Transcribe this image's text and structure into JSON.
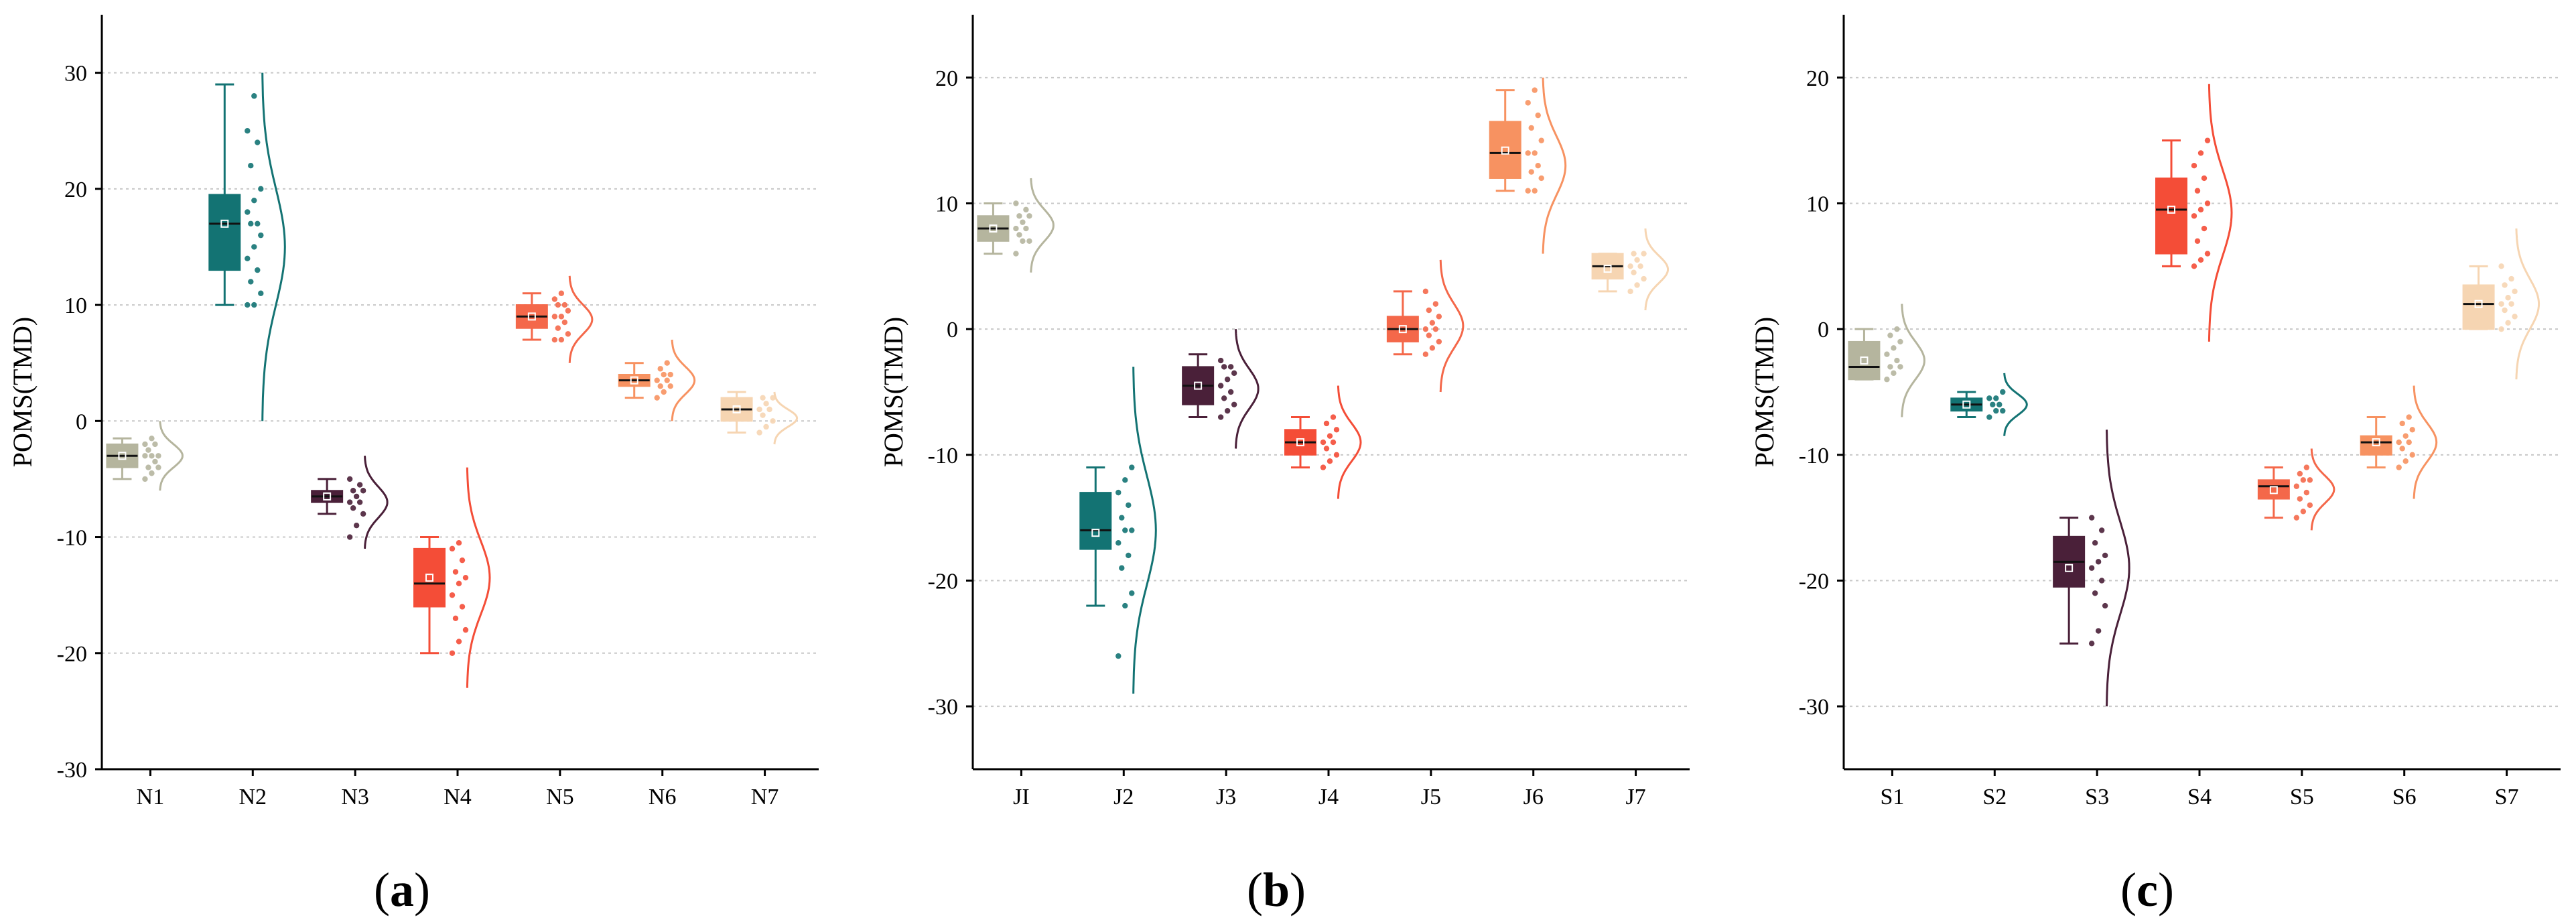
{
  "chart_data": [
    {
      "type": "box",
      "caption_letter": "a",
      "ylabel": "POMS(TMD)",
      "ylim": [
        -30,
        35
      ],
      "yticks": [
        -30,
        -20,
        -10,
        0,
        10,
        20,
        30
      ],
      "grid": true,
      "groups": [
        {
          "label": "N1",
          "color": "#b5b59e",
          "min": -5,
          "q1": -4,
          "median": -3,
          "q3": -2,
          "max": -1.5,
          "mean": -3,
          "points": [
            -5,
            -4.5,
            -4,
            -4,
            -3.5,
            -3,
            -3,
            -3,
            -2.5,
            -2,
            -2,
            -1.5
          ],
          "curve_range": [
            -6,
            0
          ]
        },
        {
          "label": "N2",
          "color": "#137373",
          "min": 10,
          "q1": 13,
          "median": 17,
          "q3": 19.5,
          "max": 29,
          "mean": 17,
          "points": [
            10,
            10,
            11,
            12,
            13,
            14,
            15,
            16,
            17,
            17,
            18,
            19,
            20,
            22,
            24,
            25,
            28
          ],
          "curve_range": [
            0,
            30
          ]
        },
        {
          "label": "N3",
          "color": "#4a2039",
          "min": -8,
          "q1": -7,
          "median": -6.5,
          "q3": -6,
          "max": -5,
          "mean": -6.5,
          "points": [
            -10,
            -9,
            -8,
            -7.5,
            -7,
            -7,
            -6.5,
            -6,
            -6,
            -5.5,
            -5
          ],
          "curve_range": [
            -11,
            -3
          ]
        },
        {
          "label": "N4",
          "color": "#f44d37",
          "min": -20,
          "q1": -16,
          "median": -14,
          "q3": -11,
          "max": -10,
          "mean": -13.5,
          "points": [
            -20,
            -19,
            -18,
            -17,
            -16,
            -15,
            -14,
            -13.5,
            -13,
            -12,
            -11,
            -10.5
          ],
          "curve_range": [
            -23,
            -4
          ]
        },
        {
          "label": "N5",
          "color": "#f4684a",
          "min": 7,
          "q1": 8,
          "median": 9,
          "q3": 10,
          "max": 11,
          "mean": 9,
          "points": [
            7,
            7,
            7.5,
            8,
            8.5,
            9,
            9,
            9.5,
            10,
            10,
            10.5,
            11
          ],
          "curve_range": [
            5,
            12.5
          ]
        },
        {
          "label": "N6",
          "color": "#f79261",
          "min": 2,
          "q1": 3,
          "median": 3.5,
          "q3": 4,
          "max": 5,
          "mean": 3.5,
          "points": [
            2,
            2.5,
            3,
            3,
            3.5,
            3.5,
            4,
            4,
            4.5,
            5
          ],
          "curve_range": [
            0,
            7
          ]
        },
        {
          "label": "N7",
          "color": "#f6d5b2",
          "min": -1,
          "q1": 0,
          "median": 1,
          "q3": 2,
          "max": 2.5,
          "mean": 1,
          "points": [
            -1,
            -0.5,
            0,
            0.5,
            1,
            1,
            1.5,
            2,
            2
          ],
          "curve_range": [
            -2,
            2.5
          ]
        }
      ]
    },
    {
      "type": "box",
      "caption_letter": "b",
      "ylabel": "POMS(TMD)",
      "ylim": [
        -35,
        25
      ],
      "yticks": [
        -30,
        -20,
        -10,
        0,
        10,
        20
      ],
      "grid": true,
      "groups": [
        {
          "label": "JI",
          "color": "#b5b59e",
          "min": 6,
          "q1": 7,
          "median": 8,
          "q3": 9,
          "max": 10,
          "mean": 8,
          "points": [
            6,
            7,
            7,
            7.5,
            8,
            8,
            8.5,
            9,
            9,
            9.5,
            10
          ],
          "curve_range": [
            4.5,
            12
          ]
        },
        {
          "label": "J2",
          "color": "#137373",
          "min": -22,
          "q1": -17.5,
          "median": -16,
          "q3": -13,
          "max": -11,
          "mean": -16.2,
          "points": [
            -26,
            -22,
            -21,
            -19,
            -18,
            -17,
            -16,
            -16,
            -15,
            -14,
            -13,
            -12,
            -11
          ],
          "curve_range": [
            -29,
            -3
          ]
        },
        {
          "label": "J3",
          "color": "#4a2039",
          "min": -7,
          "q1": -6,
          "median": -4.5,
          "q3": -3,
          "max": -2,
          "mean": -4.5,
          "points": [
            -7,
            -6.5,
            -6,
            -5.5,
            -5,
            -4.5,
            -4,
            -3.5,
            -3,
            -3,
            -2.5
          ],
          "curve_range": [
            -9.5,
            0
          ]
        },
        {
          "label": "J4",
          "color": "#f44d37",
          "min": -11,
          "q1": -10,
          "median": -9,
          "q3": -8,
          "max": -7,
          "mean": -9,
          "points": [
            -11,
            -10.5,
            -10,
            -9.5,
            -9,
            -9,
            -8.5,
            -8,
            -7.5,
            -7
          ],
          "curve_range": [
            -13.5,
            -4.5
          ]
        },
        {
          "label": "J5",
          "color": "#f4684a",
          "min": -2,
          "q1": -1,
          "median": 0,
          "q3": 1,
          "max": 3,
          "mean": 0,
          "points": [
            -2,
            -1.5,
            -1,
            -0.5,
            0,
            0,
            0.5,
            1,
            1.5,
            2,
            3
          ],
          "curve_range": [
            -5,
            5.5
          ]
        },
        {
          "label": "J6",
          "color": "#f79261",
          "min": 11,
          "q1": 12,
          "median": 14,
          "q3": 16.5,
          "max": 19,
          "mean": 14.2,
          "points": [
            11,
            11,
            12,
            12.5,
            13,
            14,
            14,
            15,
            16,
            17,
            18,
            19
          ],
          "curve_range": [
            6,
            20
          ]
        },
        {
          "label": "J7",
          "color": "#f6d5b2",
          "min": 3,
          "q1": 4,
          "median": 5,
          "q3": 6,
          "max": 6,
          "mean": 4.8,
          "points": [
            3,
            3.5,
            4,
            4.5,
            5,
            5,
            5.5,
            6,
            6
          ],
          "curve_range": [
            1.5,
            8
          ]
        }
      ]
    },
    {
      "type": "box",
      "caption_letter": "c",
      "ylabel": "POMS(TMD)",
      "ylim": [
        -35,
        25
      ],
      "yticks": [
        -30,
        -20,
        -10,
        0,
        10,
        20
      ],
      "grid": true,
      "groups": [
        {
          "label": "S1",
          "color": "#b5b59e",
          "min": -4,
          "q1": -4,
          "median": -3,
          "q3": -1,
          "max": 0,
          "mean": -2.5,
          "points": [
            -4,
            -3.5,
            -3,
            -3,
            -2.5,
            -2,
            -1.5,
            -1,
            -0.5,
            0
          ],
          "curve_range": [
            -7,
            2
          ]
        },
        {
          "label": "S2",
          "color": "#137373",
          "min": -7,
          "q1": -6.5,
          "median": -6,
          "q3": -5.5,
          "max": -5,
          "mean": -6,
          "points": [
            -7,
            -6.5,
            -6.5,
            -6,
            -6,
            -5.5,
            -5.5,
            -5
          ],
          "curve_range": [
            -8.5,
            -3.5
          ]
        },
        {
          "label": "S3",
          "color": "#4a2039",
          "min": -25,
          "q1": -20.5,
          "median": -18.5,
          "q3": -16.5,
          "max": -15,
          "mean": -19,
          "points": [
            -25,
            -24,
            -22,
            -21,
            -20,
            -19,
            -18.5,
            -18,
            -17,
            -16,
            -15
          ],
          "curve_range": [
            -30,
            -8
          ]
        },
        {
          "label": "S4",
          "color": "#f44d37",
          "min": 5,
          "q1": 6,
          "median": 9.5,
          "q3": 12,
          "max": 15,
          "mean": 9.5,
          "points": [
            5,
            5.5,
            6,
            7,
            8,
            9,
            9.5,
            10,
            11,
            12,
            13,
            14,
            15
          ],
          "curve_range": [
            -1,
            19.5
          ]
        },
        {
          "label": "S5",
          "color": "#f4684a",
          "min": -15,
          "q1": -13.5,
          "median": -12.5,
          "q3": -12,
          "max": -11,
          "mean": -12.8,
          "points": [
            -15,
            -14.5,
            -14,
            -13.5,
            -13,
            -12.5,
            -12,
            -12,
            -11.5,
            -11
          ],
          "curve_range": [
            -16,
            -9.5
          ]
        },
        {
          "label": "S6",
          "color": "#f79261",
          "min": -11,
          "q1": -10,
          "median": -9,
          "q3": -8.5,
          "max": -7,
          "mean": -9,
          "points": [
            -11,
            -10.5,
            -10,
            -9.5,
            -9,
            -9,
            -8.5,
            -8,
            -7.5,
            -7
          ],
          "curve_range": [
            -13.5,
            -4.5
          ]
        },
        {
          "label": "S7",
          "color": "#f6d5b2",
          "min": 0,
          "q1": 0,
          "median": 2,
          "q3": 3.5,
          "max": 5,
          "mean": 2,
          "points": [
            0,
            0.5,
            1,
            1.5,
            2,
            2,
            2.5,
            3,
            3.5,
            4,
            5
          ],
          "curve_range": [
            -4,
            8
          ]
        }
      ]
    }
  ]
}
